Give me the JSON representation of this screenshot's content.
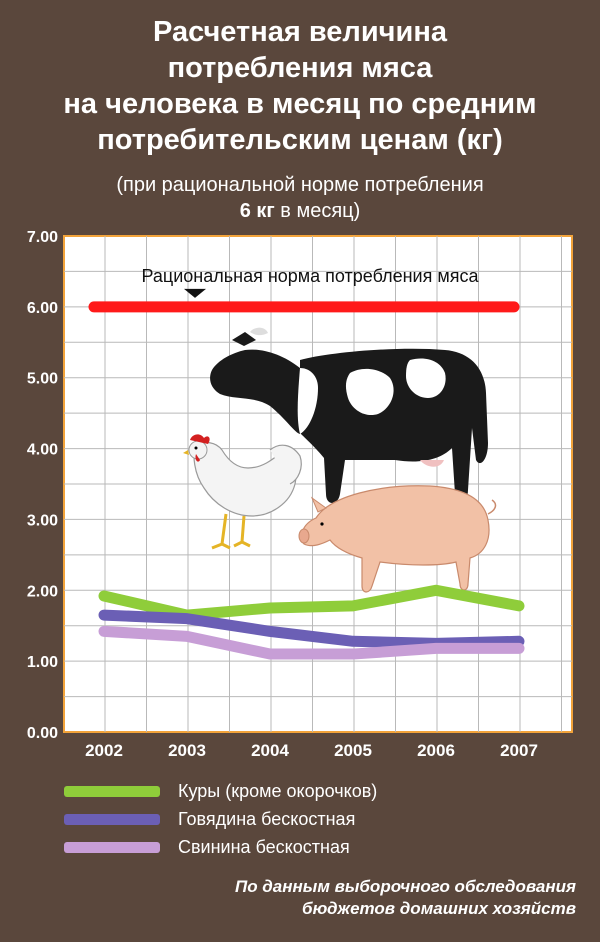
{
  "title": {
    "lines": [
      "Расчетная величина",
      "потребления мяса",
      "на человека в месяц по средним",
      "потребительским ценам (кг)"
    ]
  },
  "subtitle": {
    "line1": "(при рациональной норме потребления",
    "line2_bold": "6 кг",
    "line2_rest": " в месяц)"
  },
  "chart_data": {
    "type": "line",
    "categories": [
      "2002",
      "2003",
      "2004",
      "2005",
      "2006",
      "2007"
    ],
    "ylim": [
      0,
      7
    ],
    "yticks": [
      "0.00",
      "1.00",
      "2.00",
      "3.00",
      "4.00",
      "5.00",
      "6.00",
      "7.00"
    ],
    "grid": true,
    "reference_line": {
      "value": 6.0,
      "label": "Рациональная норма потребления мяса",
      "color": "#ff1a1a"
    },
    "series": [
      {
        "name": "Куры  (кроме окорочков)",
        "color": "#8fcd3a",
        "values": [
          1.92,
          1.65,
          1.75,
          1.78,
          2.0,
          1.78
        ]
      },
      {
        "name": "Говядина бескостная",
        "color": "#6b5fb5",
        "values": [
          1.65,
          1.6,
          1.42,
          1.28,
          1.25,
          1.28
        ]
      },
      {
        "name": "Свинина бескостная",
        "color": "#c79ed6",
        "values": [
          1.42,
          1.35,
          1.1,
          1.1,
          1.18,
          1.18
        ]
      }
    ]
  },
  "source": {
    "line1": "По данным выборочного обследования",
    "line2": "бюджетов домашних хозяйств"
  },
  "illustration": {
    "icons": [
      "cow-icon",
      "chicken-icon",
      "pig-icon"
    ]
  }
}
